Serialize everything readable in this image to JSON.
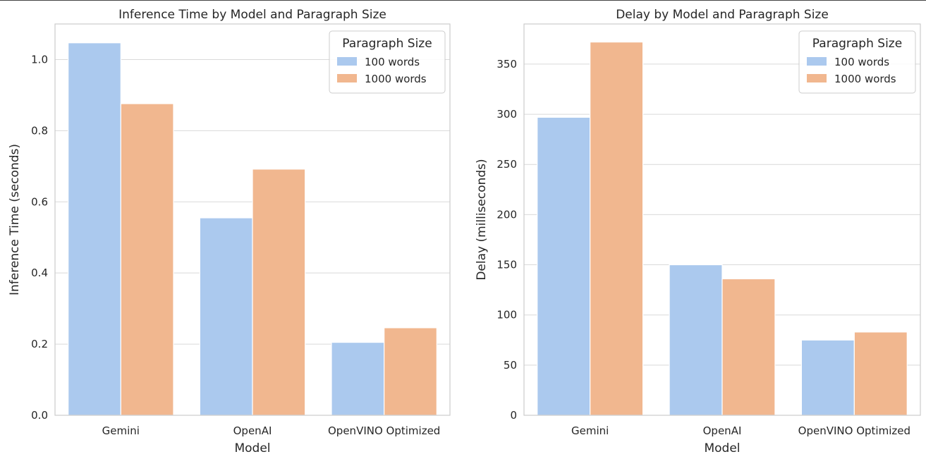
{
  "colors": {
    "series_100": "#abc9ee",
    "series_1000": "#f1b78f",
    "grid": "#d9d9d9",
    "frame": "#cccccc"
  },
  "chart_data": [
    {
      "type": "bar",
      "title": "Inference Time by Model and Paragraph Size",
      "xlabel": "Model",
      "ylabel": "Inference Time (seconds)",
      "categories": [
        "Gemini",
        "OpenAI",
        "OpenVINO Optimized"
      ],
      "series": [
        {
          "name": "100 words",
          "values": [
            1.047,
            0.555,
            0.205
          ]
        },
        {
          "name": "1000 words",
          "values": [
            0.876,
            0.692,
            0.246
          ]
        }
      ],
      "ylim": [
        0,
        1.1
      ],
      "yticks": [
        0.0,
        0.2,
        0.4,
        0.6,
        0.8,
        1.0
      ],
      "ytick_labels": [
        "0.0",
        "0.2",
        "0.4",
        "0.6",
        "0.8",
        "1.0"
      ],
      "legend_title": "Paragraph Size",
      "legend_position": "top-right",
      "grid": "y"
    },
    {
      "type": "bar",
      "title": "Delay by Model and Paragraph Size",
      "xlabel": "Model",
      "ylabel": "Delay (milliseconds)",
      "categories": [
        "Gemini",
        "OpenAI",
        "OpenVINO Optimized"
      ],
      "series": [
        {
          "name": "100 words",
          "values": [
            297,
            150,
            75
          ]
        },
        {
          "name": "1000 words",
          "values": [
            372,
            136,
            83
          ]
        }
      ],
      "ylim": [
        0,
        390
      ],
      "yticks": [
        0,
        50,
        100,
        150,
        200,
        250,
        300,
        350
      ],
      "ytick_labels": [
        "0",
        "50",
        "100",
        "150",
        "200",
        "250",
        "300",
        "350"
      ],
      "legend_title": "Paragraph Size",
      "legend_position": "top-right",
      "grid": "y"
    }
  ]
}
